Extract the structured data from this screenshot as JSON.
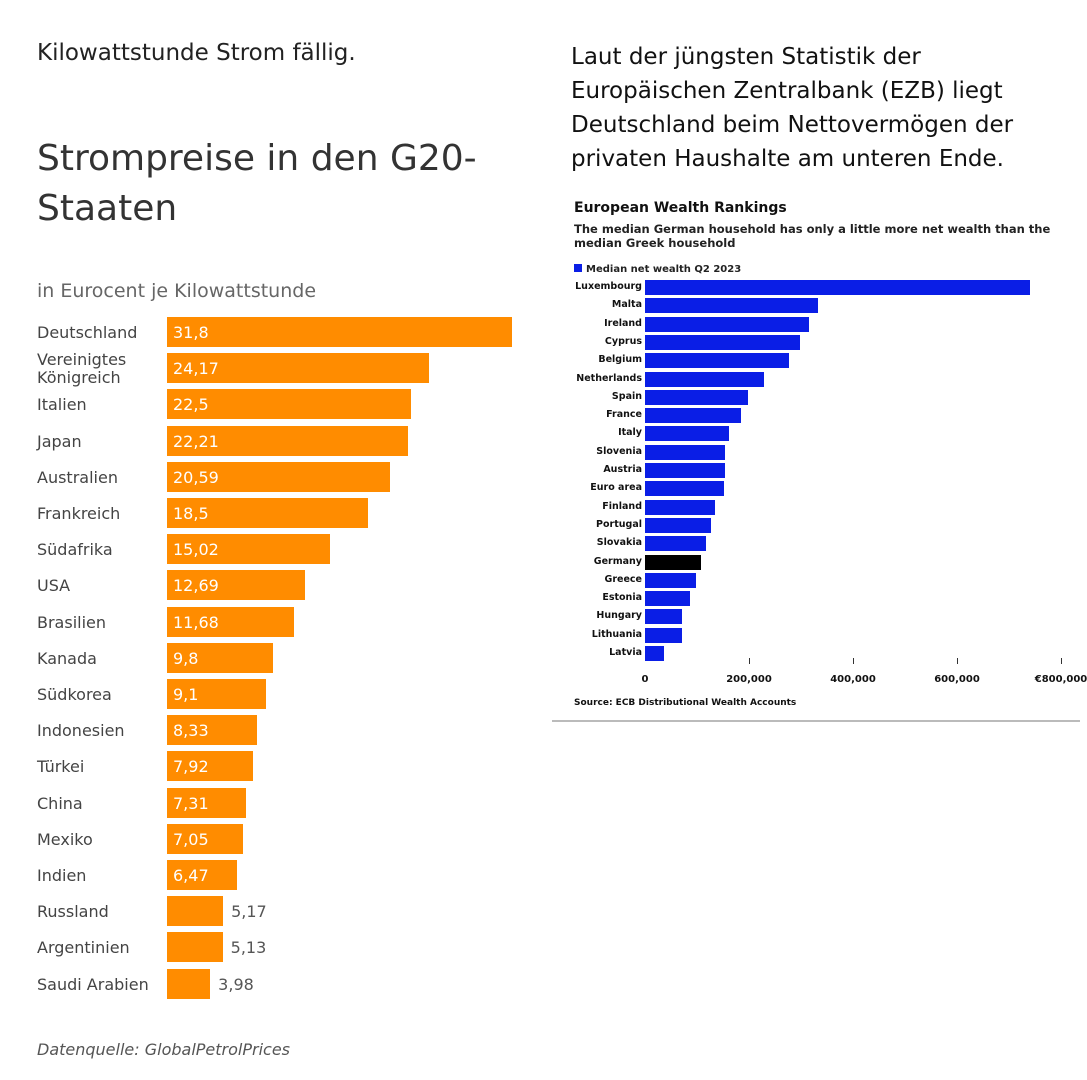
{
  "left_text": "Kilowattstunde Strom fällig.",
  "right_text": "Laut der jüngsten Statistik der Europäischen Zentralbank (EZB)  liegt Deutschland beim Nettovermögen der privaten Haushalte am unteren Ende.",
  "chart_data": [
    {
      "type": "bar",
      "orientation": "horizontal",
      "title": "Strompreise in den G20-Staaten",
      "subtitle": "in Eurocent je Kilowattstunde",
      "source": "Datenquelle: GlobalPetrolPrices",
      "bar_color": "#ff8c00",
      "categories": [
        "Deutschland",
        "Vereinigtes Königreich",
        "Italien",
        "Japan",
        "Australien",
        "Frankreich",
        "Südafrika",
        "USA",
        "Brasilien",
        "Kanada",
        "Südkorea",
        "Indonesien",
        "Türkei",
        "China",
        "Mexiko",
        "Indien",
        "Russland",
        "Argentinien",
        "Saudi Arabien"
      ],
      "values": [
        31.8,
        24.17,
        22.5,
        22.21,
        20.59,
        18.5,
        15.02,
        12.69,
        11.68,
        9.8,
        9.1,
        8.33,
        7.92,
        7.31,
        7.05,
        6.47,
        5.17,
        5.13,
        3.98
      ],
      "value_labels": [
        "31,8",
        "24,17",
        "22,5",
        "22,21",
        "20,59",
        "18,5",
        "15,02",
        "12,69",
        "11,68",
        "9,8",
        "9,1",
        "8,33",
        "7,92",
        "7,31",
        "7,05",
        "6,47",
        "5,17",
        "5,13",
        "3,98"
      ]
    },
    {
      "type": "bar",
      "orientation": "horizontal",
      "title": "European Wealth Rankings",
      "subtitle": "The median German household has only a little more net wealth than the median Greek household",
      "legend": "Median net wealth Q2 2023",
      "legend_placement": "top-left",
      "source": "Source: ECB Distributional Wealth Accounts",
      "bar_color": "#0a1ee6",
      "highlight_color": "#000000",
      "highlight": "Germany",
      "xlim": [
        0,
        800000
      ],
      "xticks": [
        0,
        200000,
        400000,
        600000,
        800000
      ],
      "xtick_labels": [
        "0",
        "200,000",
        "400,000",
        "600,000",
        "€800,000"
      ],
      "categories": [
        "Luxembourg",
        "Malta",
        "Ireland",
        "Cyprus",
        "Belgium",
        "Netherlands",
        "Spain",
        "France",
        "Italy",
        "Slovenia",
        "Austria",
        "Euro area",
        "Finland",
        "Portugal",
        "Slovakia",
        "Germany",
        "Greece",
        "Estonia",
        "Hungary",
        "Lithuania",
        "Latvia"
      ],
      "values": [
        740000,
        333000,
        315000,
        298000,
        277000,
        229000,
        198000,
        185000,
        162000,
        154000,
        154000,
        152000,
        135000,
        127000,
        117000,
        108000,
        98000,
        87000,
        71000,
        71000,
        37000
      ]
    }
  ]
}
